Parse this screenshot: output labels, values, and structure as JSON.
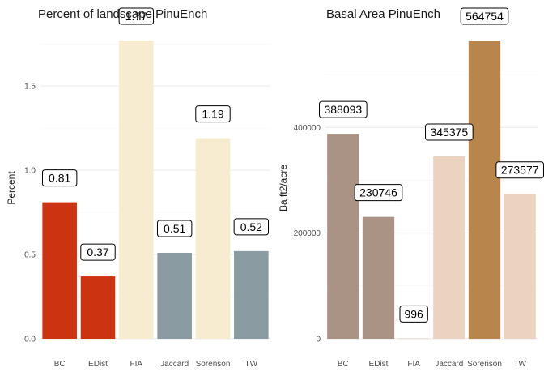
{
  "chart_data": [
    {
      "type": "bar",
      "title": "Percent of landscape  PinuEnch",
      "xlabel": "",
      "ylabel": "Percent",
      "ylim": [
        0,
        1.77
      ],
      "yticks": [
        0.0,
        0.5,
        1.0,
        1.5
      ],
      "ytick_labels": [
        "0.0",
        "0.5",
        "1.0",
        "1.5"
      ],
      "categories": [
        "BC",
        "EDist",
        "FIA",
        "Jaccard",
        "Sorenson",
        "TW"
      ],
      "values": [
        0.81,
        0.37,
        1.77,
        0.51,
        1.19,
        0.52
      ],
      "data_labels": [
        "0.81",
        "0.37",
        "1.77",
        "0.51",
        "1.19",
        "0.52"
      ],
      "colors": [
        "#cc3311",
        "#cc3311",
        "#f8ecd0",
        "#8a9ba2",
        "#f8ecd0",
        "#8a9ba2"
      ],
      "grid": true
    },
    {
      "type": "bar",
      "title": "Basal Area  PinuEnch",
      "xlabel": "",
      "ylabel": "Ba ft2/acre",
      "ylim": [
        0,
        564754
      ],
      "yticks": [
        0,
        200000,
        400000
      ],
      "ytick_labels": [
        "0",
        "200000",
        "400000"
      ],
      "categories": [
        "BC",
        "EDist",
        "FIA",
        "Jaccard",
        "Sorenson",
        "TW"
      ],
      "values": [
        388093,
        230746,
        996,
        345375,
        564754,
        273577
      ],
      "data_labels": [
        "388093",
        "230746",
        "996",
        "345375",
        "564754",
        "273577"
      ],
      "colors": [
        "#aa9385",
        "#aa9385",
        "#ecd2c0",
        "#ecd2c0",
        "#b8864d",
        "#ecd2c0"
      ],
      "grid": true
    }
  ]
}
